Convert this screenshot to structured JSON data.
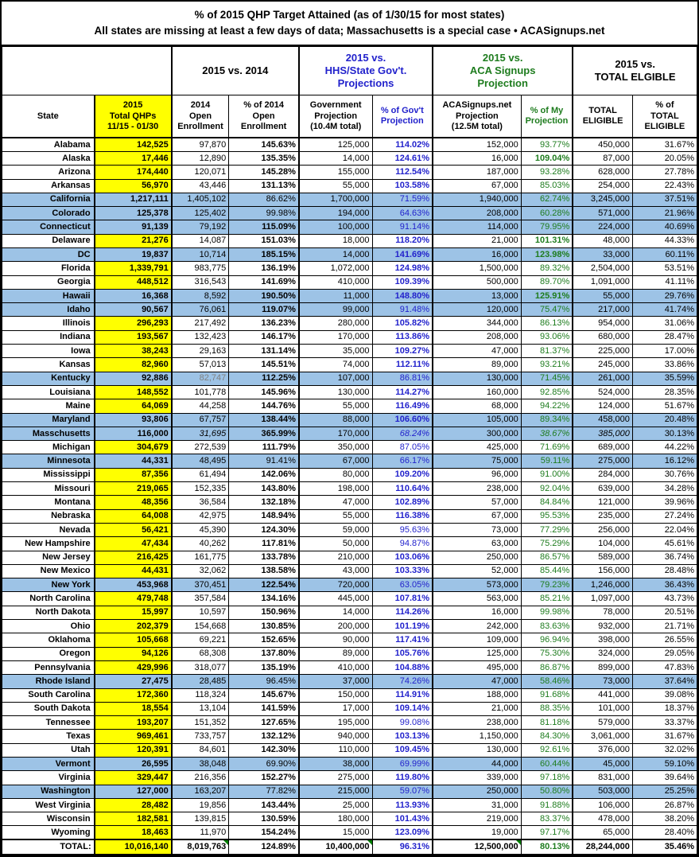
{
  "title": {
    "line1": "% of 2015 QHP Target Attained (as of 1/30/15 for most states)",
    "line2": "All states are missing at least a few days of data; Massachusetts is a special case • ACASignups.net"
  },
  "colors": {
    "yellow_highlight": "#FFFF00",
    "blue_row": "#9DC3E6",
    "blue_text": "#2222CC",
    "green_text": "#1E7C1E",
    "gray_text": "#808080",
    "comment_flag_green": "#008000"
  },
  "chart_data": {
    "type": "table",
    "title": "% of 2015 QHP Target Attained (as of 1/30/15 for most states)",
    "subtitle": "All states are missing at least a few days of data; Massachusetts is a special case • ACASignups.net",
    "group_headers": [
      {
        "label": "",
        "span": 2,
        "color": "black"
      },
      {
        "label": "2015 vs. 2014",
        "span": 2,
        "color": "black"
      },
      {
        "label": "2015 vs.\nHHS/State Gov't.\nProjections",
        "span": 2,
        "color": "blue"
      },
      {
        "label": "2015 vs.\nACA Signups\nProjection",
        "span": 2,
        "color": "green"
      },
      {
        "label": "2015 vs.\nTOTAL ELGIBLE",
        "span": 2,
        "color": "black"
      }
    ],
    "columns": [
      {
        "key": "state",
        "label": "State"
      },
      {
        "key": "qhp",
        "label": "2015\nTotal QHPs\n11/15 - 01/30",
        "bg": "yellow"
      },
      {
        "key": "open2014",
        "label": "2014\nOpen\nEnrollment"
      },
      {
        "key": "pct2014",
        "label": "% of 2014\nOpen\nEnrollment"
      },
      {
        "key": "gov",
        "label": "Government\nProjection\n(10.4M total)"
      },
      {
        "key": "pctgov",
        "label": "% of Gov't\nProjection",
        "color": "blue"
      },
      {
        "key": "aca",
        "label": "ACASignups.net\nProjection\n(12.5M total)"
      },
      {
        "key": "pctmy",
        "label": "% of My\nProjection",
        "color": "green"
      },
      {
        "key": "eligible",
        "label": "TOTAL\nELIGIBLE"
      },
      {
        "key": "pcttot",
        "label": "% of\nTOTAL\nELIGIBLE"
      }
    ],
    "rows": [
      {
        "state": "Alabama",
        "qhp": "142,525",
        "open2014": "97,870",
        "pct2014": "145.63%",
        "gov": "125,000",
        "pctgov": "114.02%",
        "aca": "152,000",
        "pctmy": "93.77%",
        "eligible": "450,000",
        "pcttot": "31.67%",
        "blue": false
      },
      {
        "state": "Alaska",
        "qhp": "17,446",
        "open2014": "12,890",
        "pct2014": "135.35%",
        "gov": "14,000",
        "pctgov": "124.61%",
        "aca": "16,000",
        "pctmy": "109.04%",
        "eligible": "87,000",
        "pcttot": "20.05%",
        "blue": false
      },
      {
        "state": "Arizona",
        "qhp": "174,440",
        "open2014": "120,071",
        "pct2014": "145.28%",
        "gov": "155,000",
        "pctgov": "112.54%",
        "aca": "187,000",
        "pctmy": "93.28%",
        "eligible": "628,000",
        "pcttot": "27.78%",
        "blue": false
      },
      {
        "state": "Arkansas",
        "qhp": "56,970",
        "open2014": "43,446",
        "pct2014": "131.13%",
        "gov": "55,000",
        "pctgov": "103.58%",
        "aca": "67,000",
        "pctmy": "85.03%",
        "eligible": "254,000",
        "pcttot": "22.43%",
        "blue": false
      },
      {
        "state": "California",
        "qhp": "1,217,111",
        "open2014": "1,405,102",
        "pct2014": "86.62%",
        "gov": "1,700,000",
        "pctgov": "71.59%",
        "aca": "1,940,000",
        "pctmy": "62.74%",
        "eligible": "3,245,000",
        "pcttot": "37.51%",
        "blue": true
      },
      {
        "state": "Colorado",
        "qhp": "125,378",
        "open2014": "125,402",
        "pct2014": "99.98%",
        "gov": "194,000",
        "pctgov": "64.63%",
        "aca": "208,000",
        "pctmy": "60.28%",
        "eligible": "571,000",
        "pcttot": "21.96%",
        "blue": true
      },
      {
        "state": "Connecticut",
        "qhp": "91,139",
        "open2014": "79,192",
        "pct2014": "115.09%",
        "gov": "100,000",
        "pctgov": "91.14%",
        "aca": "114,000",
        "pctmy": "79.95%",
        "eligible": "224,000",
        "pcttot": "40.69%",
        "blue": true
      },
      {
        "state": "Delaware",
        "qhp": "21,276",
        "open2014": "14,087",
        "pct2014": "151.03%",
        "gov": "18,000",
        "pctgov": "118.20%",
        "aca": "21,000",
        "pctmy": "101.31%",
        "eligible": "48,000",
        "pcttot": "44.33%",
        "blue": false
      },
      {
        "state": "DC",
        "qhp": "19,837",
        "open2014": "10,714",
        "pct2014": "185.15%",
        "gov": "14,000",
        "pctgov": "141.69%",
        "aca": "16,000",
        "pctmy": "123.98%",
        "eligible": "33,000",
        "pcttot": "60.11%",
        "blue": true
      },
      {
        "state": "Florida",
        "qhp": "1,339,791",
        "open2014": "983,775",
        "pct2014": "136.19%",
        "gov": "1,072,000",
        "pctgov": "124.98%",
        "aca": "1,500,000",
        "pctmy": "89.32%",
        "eligible": "2,504,000",
        "pcttot": "53.51%",
        "blue": false
      },
      {
        "state": "Georgia",
        "qhp": "448,512",
        "open2014": "316,543",
        "pct2014": "141.69%",
        "gov": "410,000",
        "pctgov": "109.39%",
        "aca": "500,000",
        "pctmy": "89.70%",
        "eligible": "1,091,000",
        "pcttot": "41.11%",
        "blue": false
      },
      {
        "state": "Hawaii",
        "qhp": "16,368",
        "open2014": "8,592",
        "pct2014": "190.50%",
        "gov": "11,000",
        "pctgov": "148.80%",
        "aca": "13,000",
        "pctmy": "125.91%",
        "eligible": "55,000",
        "pcttot": "29.76%",
        "blue": true
      },
      {
        "state": "Idaho",
        "qhp": "90,567",
        "open2014": "76,061",
        "pct2014": "119.07%",
        "gov": "99,000",
        "pctgov": "91.48%",
        "aca": "120,000",
        "pctmy": "75.47%",
        "eligible": "217,000",
        "pcttot": "41.74%",
        "blue": true
      },
      {
        "state": "Illinois",
        "qhp": "296,293",
        "open2014": "217,492",
        "pct2014": "136.23%",
        "gov": "280,000",
        "pctgov": "105.82%",
        "aca": "344,000",
        "pctmy": "86.13%",
        "eligible": "954,000",
        "pcttot": "31.06%",
        "blue": false
      },
      {
        "state": "Indiana",
        "qhp": "193,567",
        "open2014": "132,423",
        "pct2014": "146.17%",
        "gov": "170,000",
        "pctgov": "113.86%",
        "aca": "208,000",
        "pctmy": "93.06%",
        "eligible": "680,000",
        "pcttot": "28.47%",
        "blue": false
      },
      {
        "state": "Iowa",
        "qhp": "38,243",
        "open2014": "29,163",
        "pct2014": "131.14%",
        "gov": "35,000",
        "pctgov": "109.27%",
        "aca": "47,000",
        "pctmy": "81.37%",
        "eligible": "225,000",
        "pcttot": "17.00%",
        "blue": false
      },
      {
        "state": "Kansas",
        "qhp": "82,960",
        "open2014": "57,013",
        "pct2014": "145.51%",
        "gov": "74,000",
        "pctgov": "112.11%",
        "aca": "89,000",
        "pctmy": "93.21%",
        "eligible": "245,000",
        "pcttot": "33.86%",
        "blue": false
      },
      {
        "state": "Kentucky",
        "qhp": "92,886",
        "open2014": "82,747",
        "pct2014": "112.25%",
        "gov": "107,000",
        "pctgov": "86.81%",
        "aca": "130,000",
        "pctmy": "71.45%",
        "eligible": "261,000",
        "pcttot": "35.59%",
        "blue": true,
        "gray": [
          "open2014"
        ]
      },
      {
        "state": "Louisiana",
        "qhp": "148,552",
        "open2014": "101,778",
        "pct2014": "145.96%",
        "gov": "130,000",
        "pctgov": "114.27%",
        "aca": "160,000",
        "pctmy": "92.85%",
        "eligible": "524,000",
        "pcttot": "28.35%",
        "blue": false
      },
      {
        "state": "Maine",
        "qhp": "64,069",
        "open2014": "44,258",
        "pct2014": "144.76%",
        "gov": "55,000",
        "pctgov": "116.49%",
        "aca": "68,000",
        "pctmy": "94.22%",
        "eligible": "124,000",
        "pcttot": "51.67%",
        "blue": false
      },
      {
        "state": "Maryland",
        "qhp": "93,806",
        "open2014": "67,757",
        "pct2014": "138.44%",
        "gov": "88,000",
        "pctgov": "106.60%",
        "aca": "105,000",
        "pctmy": "89.34%",
        "eligible": "458,000",
        "pcttot": "20.48%",
        "blue": true
      },
      {
        "state": "Masschusetts",
        "qhp": "116,000",
        "open2014": "31,695",
        "pct2014": "365.99%",
        "gov": "170,000",
        "pctgov": "68.24%",
        "aca": "300,000",
        "pctmy": "38.67%",
        "eligible": "385,000",
        "pcttot": "30.13%",
        "blue": true,
        "italic": [
          "open2014",
          "pctgov",
          "pctmy",
          "eligible"
        ]
      },
      {
        "state": "Michigan",
        "qhp": "304,679",
        "open2014": "272,539",
        "pct2014": "111.79%",
        "gov": "350,000",
        "pctgov": "87.05%",
        "aca": "425,000",
        "pctmy": "71.69%",
        "eligible": "689,000",
        "pcttot": "44.22%",
        "blue": false
      },
      {
        "state": "Minnesota",
        "qhp": "44,331",
        "open2014": "48,495",
        "pct2014": "91.41%",
        "gov": "67,000",
        "pctgov": "66.17%",
        "aca": "75,000",
        "pctmy": "59.11%",
        "eligible": "275,000",
        "pcttot": "16.12%",
        "blue": true
      },
      {
        "state": "Mississippi",
        "qhp": "87,356",
        "open2014": "61,494",
        "pct2014": "142.06%",
        "gov": "80,000",
        "pctgov": "109.20%",
        "aca": "96,000",
        "pctmy": "91.00%",
        "eligible": "284,000",
        "pcttot": "30.76%",
        "blue": false
      },
      {
        "state": "Missouri",
        "qhp": "219,065",
        "open2014": "152,335",
        "pct2014": "143.80%",
        "gov": "198,000",
        "pctgov": "110.64%",
        "aca": "238,000",
        "pctmy": "92.04%",
        "eligible": "639,000",
        "pcttot": "34.28%",
        "blue": false
      },
      {
        "state": "Montana",
        "qhp": "48,356",
        "open2014": "36,584",
        "pct2014": "132.18%",
        "gov": "47,000",
        "pctgov": "102.89%",
        "aca": "57,000",
        "pctmy": "84.84%",
        "eligible": "121,000",
        "pcttot": "39.96%",
        "blue": false
      },
      {
        "state": "Nebraska",
        "qhp": "64,008",
        "open2014": "42,975",
        "pct2014": "148.94%",
        "gov": "55,000",
        "pctgov": "116.38%",
        "aca": "67,000",
        "pctmy": "95.53%",
        "eligible": "235,000",
        "pcttot": "27.24%",
        "blue": false
      },
      {
        "state": "Nevada",
        "qhp": "56,421",
        "open2014": "45,390",
        "pct2014": "124.30%",
        "gov": "59,000",
        "pctgov": "95.63%",
        "aca": "73,000",
        "pctmy": "77.29%",
        "eligible": "256,000",
        "pcttot": "22.04%",
        "blue": false
      },
      {
        "state": "New Hampshire",
        "qhp": "47,434",
        "open2014": "40,262",
        "pct2014": "117.81%",
        "gov": "50,000",
        "pctgov": "94.87%",
        "aca": "63,000",
        "pctmy": "75.29%",
        "eligible": "104,000",
        "pcttot": "45.61%",
        "blue": false
      },
      {
        "state": "New Jersey",
        "qhp": "216,425",
        "open2014": "161,775",
        "pct2014": "133.78%",
        "gov": "210,000",
        "pctgov": "103.06%",
        "aca": "250,000",
        "pctmy": "86.57%",
        "eligible": "589,000",
        "pcttot": "36.74%",
        "blue": false
      },
      {
        "state": "New Mexico",
        "qhp": "44,431",
        "open2014": "32,062",
        "pct2014": "138.58%",
        "gov": "43,000",
        "pctgov": "103.33%",
        "aca": "52,000",
        "pctmy": "85.44%",
        "eligible": "156,000",
        "pcttot": "28.48%",
        "blue": false
      },
      {
        "state": "New York",
        "qhp": "453,968",
        "open2014": "370,451",
        "pct2014": "122.54%",
        "gov": "720,000",
        "pctgov": "63.05%",
        "aca": "573,000",
        "pctmy": "79.23%",
        "eligible": "1,246,000",
        "pcttot": "36.43%",
        "blue": true
      },
      {
        "state": "North Carolina",
        "qhp": "479,748",
        "open2014": "357,584",
        "pct2014": "134.16%",
        "gov": "445,000",
        "pctgov": "107.81%",
        "aca": "563,000",
        "pctmy": "85.21%",
        "eligible": "1,097,000",
        "pcttot": "43.73%",
        "blue": false
      },
      {
        "state": "North Dakota",
        "qhp": "15,997",
        "open2014": "10,597",
        "pct2014": "150.96%",
        "gov": "14,000",
        "pctgov": "114.26%",
        "aca": "16,000",
        "pctmy": "99.98%",
        "eligible": "78,000",
        "pcttot": "20.51%",
        "blue": false
      },
      {
        "state": "Ohio",
        "qhp": "202,379",
        "open2014": "154,668",
        "pct2014": "130.85%",
        "gov": "200,000",
        "pctgov": "101.19%",
        "aca": "242,000",
        "pctmy": "83.63%",
        "eligible": "932,000",
        "pcttot": "21.71%",
        "blue": false
      },
      {
        "state": "Oklahoma",
        "qhp": "105,668",
        "open2014": "69,221",
        "pct2014": "152.65%",
        "gov": "90,000",
        "pctgov": "117.41%",
        "aca": "109,000",
        "pctmy": "96.94%",
        "eligible": "398,000",
        "pcttot": "26.55%",
        "blue": false
      },
      {
        "state": "Oregon",
        "qhp": "94,126",
        "open2014": "68,308",
        "pct2014": "137.80%",
        "gov": "89,000",
        "pctgov": "105.76%",
        "aca": "125,000",
        "pctmy": "75.30%",
        "eligible": "324,000",
        "pcttot": "29.05%",
        "blue": false
      },
      {
        "state": "Pennsylvania",
        "qhp": "429,996",
        "open2014": "318,077",
        "pct2014": "135.19%",
        "gov": "410,000",
        "pctgov": "104.88%",
        "aca": "495,000",
        "pctmy": "86.87%",
        "eligible": "899,000",
        "pcttot": "47.83%",
        "blue": false
      },
      {
        "state": "Rhode Island",
        "qhp": "27,475",
        "open2014": "28,485",
        "pct2014": "96.45%",
        "gov": "37,000",
        "pctgov": "74.26%",
        "aca": "47,000",
        "pctmy": "58.46%",
        "eligible": "73,000",
        "pcttot": "37.64%",
        "blue": true
      },
      {
        "state": "South Carolina",
        "qhp": "172,360",
        "open2014": "118,324",
        "pct2014": "145.67%",
        "gov": "150,000",
        "pctgov": "114.91%",
        "aca": "188,000",
        "pctmy": "91.68%",
        "eligible": "441,000",
        "pcttot": "39.08%",
        "blue": false
      },
      {
        "state": "South Dakota",
        "qhp": "18,554",
        "open2014": "13,104",
        "pct2014": "141.59%",
        "gov": "17,000",
        "pctgov": "109.14%",
        "aca": "21,000",
        "pctmy": "88.35%",
        "eligible": "101,000",
        "pcttot": "18.37%",
        "blue": false
      },
      {
        "state": "Tennessee",
        "qhp": "193,207",
        "open2014": "151,352",
        "pct2014": "127.65%",
        "gov": "195,000",
        "pctgov": "99.08%",
        "aca": "238,000",
        "pctmy": "81.18%",
        "eligible": "579,000",
        "pcttot": "33.37%",
        "blue": false
      },
      {
        "state": "Texas",
        "qhp": "969,461",
        "open2014": "733,757",
        "pct2014": "132.12%",
        "gov": "940,000",
        "pctgov": "103.13%",
        "aca": "1,150,000",
        "pctmy": "84.30%",
        "eligible": "3,061,000",
        "pcttot": "31.67%",
        "blue": false
      },
      {
        "state": "Utah",
        "qhp": "120,391",
        "open2014": "84,601",
        "pct2014": "142.30%",
        "gov": "110,000",
        "pctgov": "109.45%",
        "aca": "130,000",
        "pctmy": "92.61%",
        "eligible": "376,000",
        "pcttot": "32.02%",
        "blue": false
      },
      {
        "state": "Vermont",
        "qhp": "26,595",
        "open2014": "38,048",
        "pct2014": "69.90%",
        "gov": "38,000",
        "pctgov": "69.99%",
        "aca": "44,000",
        "pctmy": "60.44%",
        "eligible": "45,000",
        "pcttot": "59.10%",
        "blue": true
      },
      {
        "state": "Virginia",
        "qhp": "329,447",
        "open2014": "216,356",
        "pct2014": "152.27%",
        "gov": "275,000",
        "pctgov": "119.80%",
        "aca": "339,000",
        "pctmy": "97.18%",
        "eligible": "831,000",
        "pcttot": "39.64%",
        "blue": false
      },
      {
        "state": "Washington",
        "qhp": "127,000",
        "open2014": "163,207",
        "pct2014": "77.82%",
        "gov": "215,000",
        "pctgov": "59.07%",
        "aca": "250,000",
        "pctmy": "50.80%",
        "eligible": "503,000",
        "pcttot": "25.25%",
        "blue": true
      },
      {
        "state": "West Virginia",
        "qhp": "28,482",
        "open2014": "19,856",
        "pct2014": "143.44%",
        "gov": "25,000",
        "pctgov": "113.93%",
        "aca": "31,000",
        "pctmy": "91.88%",
        "eligible": "106,000",
        "pcttot": "26.87%",
        "blue": false
      },
      {
        "state": "Wisconsin",
        "qhp": "182,581",
        "open2014": "139,815",
        "pct2014": "130.59%",
        "gov": "180,000",
        "pctgov": "101.43%",
        "aca": "219,000",
        "pctmy": "83.37%",
        "eligible": "478,000",
        "pcttot": "38.20%",
        "blue": false
      },
      {
        "state": "Wyoming",
        "qhp": "18,463",
        "open2014": "11,970",
        "pct2014": "154.24%",
        "gov": "15,000",
        "pctgov": "123.09%",
        "aca": "19,000",
        "pctmy": "97.17%",
        "eligible": "65,000",
        "pcttot": "28.40%",
        "blue": false
      }
    ],
    "total": {
      "state": "TOTAL:",
      "qhp": "10,016,140",
      "open2014": "8,019,763",
      "pct2014": "124.89%",
      "gov": "10,400,000",
      "pctgov": "96.31%",
      "aca": "12,500,000",
      "pctmy": "80.13%",
      "eligible": "28,244,000",
      "pcttot": "35.46%",
      "comment_flags": [
        "open2014",
        "gov",
        "aca"
      ]
    }
  }
}
